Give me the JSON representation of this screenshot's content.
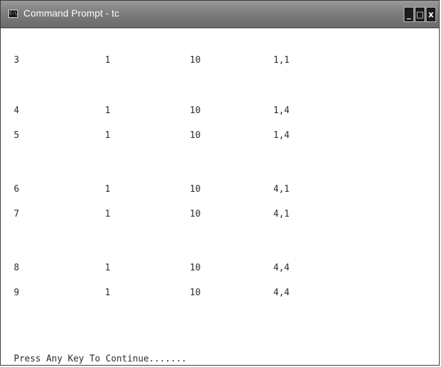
{
  "window": {
    "title": "Command Prompt - tc",
    "icon": "cmd-icon",
    "icon_glyph": "C:\\",
    "controls": {
      "minimize": "_",
      "maximize": "□",
      "close": "x"
    }
  },
  "console": {
    "rows": [
      [
        "3",
        "1",
        "10",
        "1,1"
      ],
      [
        "4",
        "1",
        "10",
        "1,4"
      ],
      [
        "5",
        "1",
        "10",
        "1,4"
      ],
      [
        "6",
        "1",
        "10",
        "4,1"
      ],
      [
        "7",
        "1",
        "10",
        "4,1"
      ],
      [
        "8",
        "1",
        "10",
        "4,4"
      ],
      [
        "9",
        "1",
        "10",
        "4,4"
      ]
    ],
    "prompt": "Press Any Key To Continue......."
  }
}
